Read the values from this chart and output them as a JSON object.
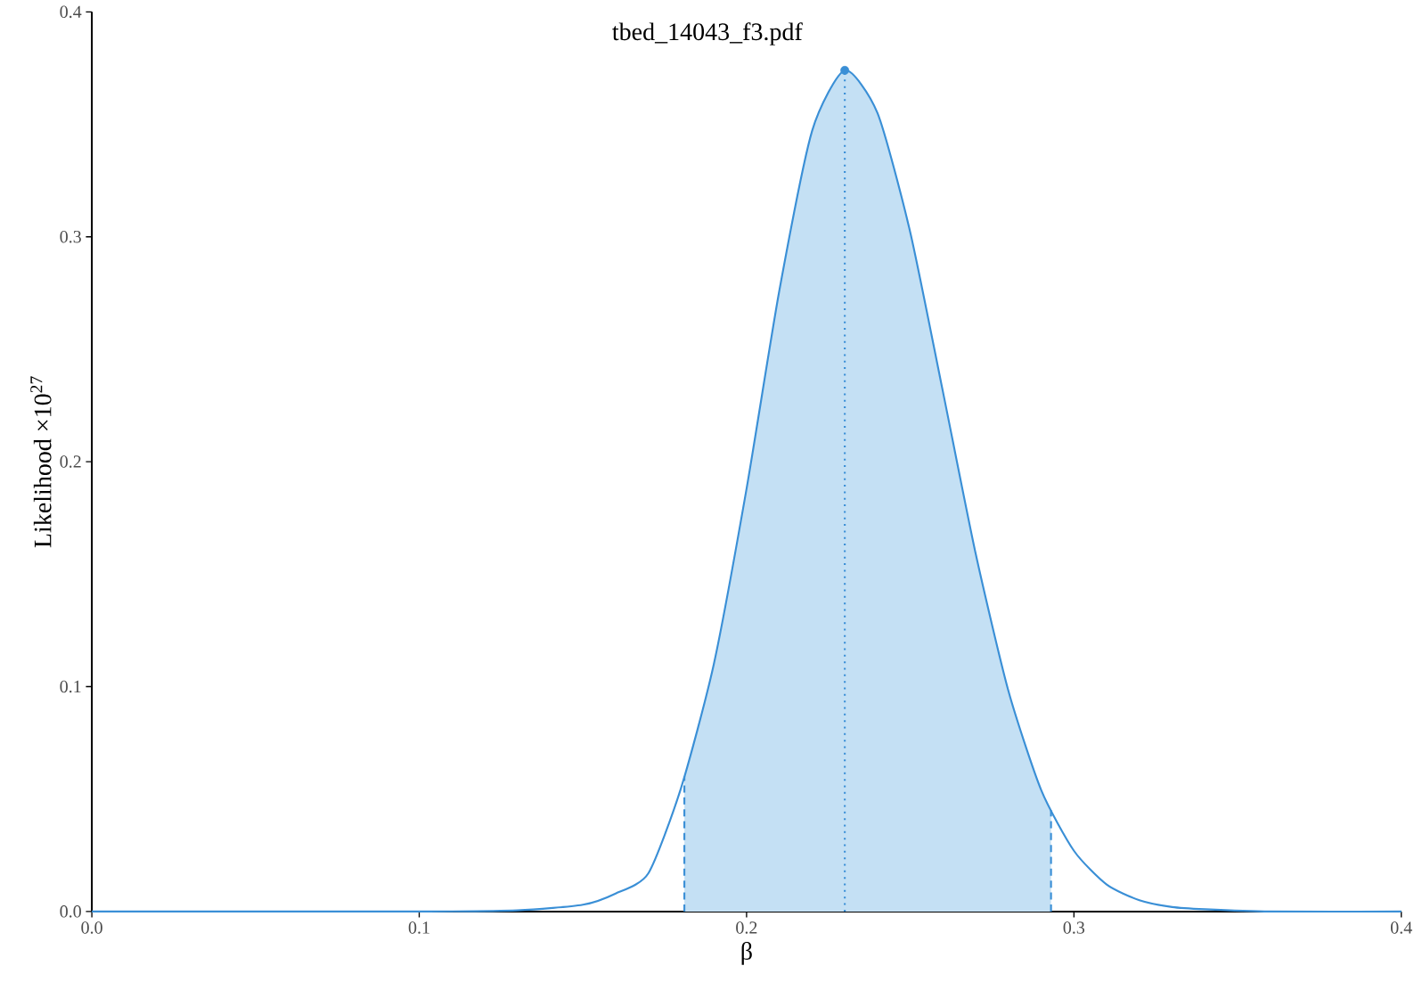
{
  "chart_data": {
    "type": "line",
    "title": "tbed_14043_f3.pdf",
    "xlabel": "β",
    "ylabel": "Likelihood ×10$^{27}$",
    "xlim": [
      0.0,
      0.4
    ],
    "ylim": [
      0.0,
      0.4
    ],
    "xticks": [
      {
        "value": 0,
        "label": "0.0"
      },
      0.1,
      0.2,
      0.3,
      {
        "value": 0.4,
        "label": "0.4"
      }
    ],
    "yticks": [
      {
        "value": 0,
        "label": "0.0"
      },
      0.1,
      0.2,
      0.3,
      {
        "value": 0.4,
        "label": "0.4"
      }
    ],
    "grid": false,
    "series": [
      {
        "type": "area",
        "color": "#c4e0f4",
        "x": [
          0.181,
          0.19,
          0.2,
          0.21,
          0.22,
          0.23,
          0.24,
          0.25,
          0.26,
          0.27,
          0.28,
          0.29,
          0.293
        ],
        "values": [
          0.06,
          0.11,
          0.188,
          0.276,
          0.347,
          0.374,
          0.355,
          0.302,
          0.231,
          0.159,
          0.098,
          0.054,
          0.045
        ]
      },
      {
        "color": "#3a8fd6",
        "line_style": "solid",
        "x": [
          0.0,
          0.1,
          0.13,
          0.15,
          0.16,
          0.17,
          0.18,
          0.19,
          0.2,
          0.21,
          0.22,
          0.23,
          0.24,
          0.25,
          0.26,
          0.27,
          0.28,
          0.29,
          0.3,
          0.31,
          0.32,
          0.33,
          0.34,
          0.36,
          0.4
        ],
        "values": [
          0.0,
          0.0,
          0.0005,
          0.003,
          0.008,
          0.017,
          0.055,
          0.11,
          0.188,
          0.276,
          0.347,
          0.374,
          0.355,
          0.302,
          0.231,
          0.159,
          0.098,
          0.054,
          0.027,
          0.012,
          0.005,
          0.002,
          0.001,
          0.0,
          0.0
        ]
      },
      {
        "type": "line",
        "color": "#3a8fd6",
        "line_style": "dashed",
        "x": [
          0.181,
          0.181
        ],
        "values": [
          0.0,
          0.06
        ]
      },
      {
        "type": "line",
        "color": "#3a8fd6",
        "line_style": "dashed",
        "x": [
          0.293,
          0.293
        ],
        "values": [
          0.0,
          0.045
        ]
      },
      {
        "type": "line",
        "color": "#3a8fd6",
        "line_style": "dotted",
        "x": [
          0.23,
          0.23
        ],
        "values": [
          0.0,
          0.374
        ]
      },
      {
        "type": "scatter",
        "color": "#3a8fd6",
        "marker": "circle",
        "x": [
          0.23
        ],
        "values": [
          0.374
        ]
      }
    ]
  }
}
